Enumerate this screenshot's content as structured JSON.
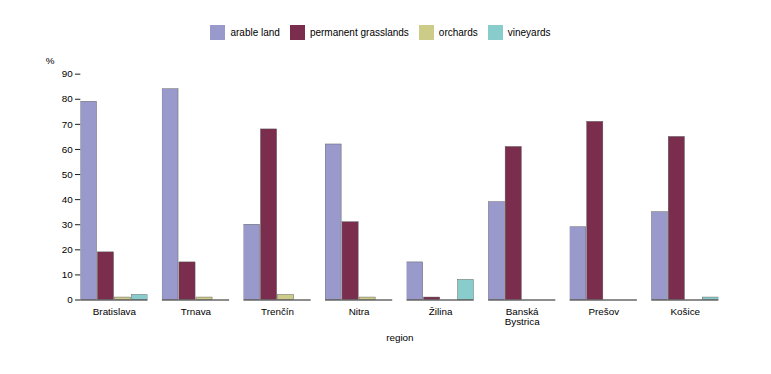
{
  "chart_data": {
    "type": "bar",
    "categories": [
      "Bratislava",
      "Trnava",
      "Trenčín",
      "Nitra",
      "Žilina",
      "Banská\nBystrica",
      "Prešov",
      "Košice"
    ],
    "series": [
      {
        "name": "arable land",
        "color": "#9999cc",
        "values": [
          79,
          84,
          30,
          62,
          15,
          39,
          29,
          35
        ]
      },
      {
        "name": "permanent grasslands",
        "color": "#7b2d4e",
        "values": [
          19,
          15,
          68,
          31,
          1,
          61,
          71,
          65
        ]
      },
      {
        "name": "orchards",
        "color": "#cccc88",
        "values": [
          1,
          1,
          2,
          1,
          0,
          0,
          0,
          0
        ]
      },
      {
        "name": "vineyards",
        "color": "#88cccc",
        "values": [
          2,
          0,
          0,
          0,
          8,
          0,
          0,
          1
        ]
      }
    ],
    "xlabel": "region",
    "ylabel": "%",
    "ylim": [
      0,
      90
    ],
    "yticks": [
      0,
      10,
      20,
      30,
      40,
      50,
      60,
      70,
      80,
      90
    ],
    "grid": false,
    "legend": "top"
  }
}
